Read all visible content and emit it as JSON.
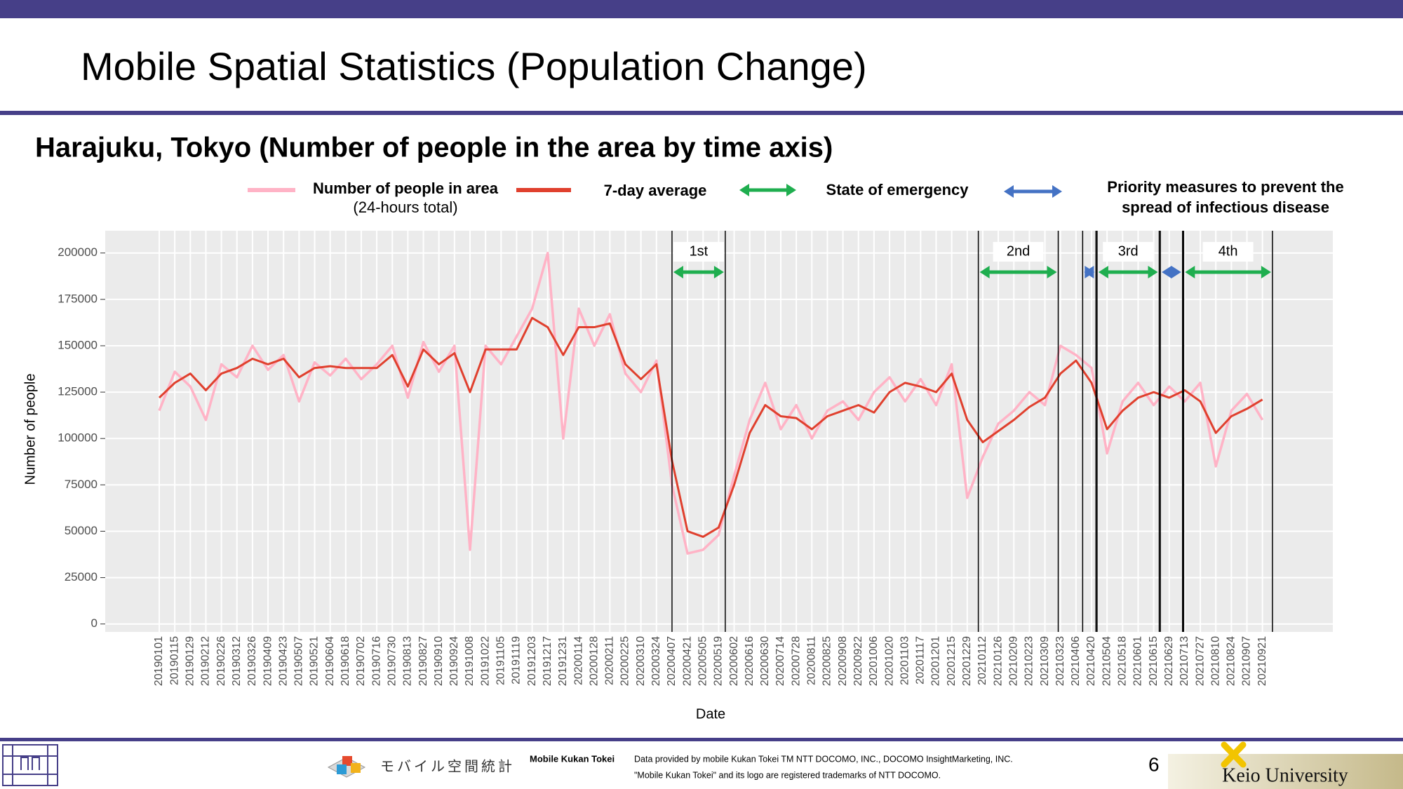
{
  "header": {
    "title": "Mobile Spatial Statistics (Population Change)"
  },
  "chart_data": {
    "type": "line",
    "title": "Harajuku, Tokyo (Number of people in the area by time axis)",
    "x_label": "Date",
    "y_label": "Number of people",
    "categories": [
      "20190101",
      "20190115",
      "20190129",
      "20190212",
      "20190226",
      "20190312",
      "20190326",
      "20190409",
      "20190423",
      "20190507",
      "20190521",
      "20190604",
      "20190618",
      "20190702",
      "20190716",
      "20190730",
      "20190813",
      "20190827",
      "20190910",
      "20190924",
      "20191008",
      "20191022",
      "20191105",
      "20191119",
      "20191203",
      "20191217",
      "20191231",
      "20200114",
      "20200128",
      "20200211",
      "20200225",
      "20200310",
      "20200324",
      "20200407",
      "20200421",
      "20200505",
      "20200519",
      "20200602",
      "20200616",
      "20200630",
      "20200714",
      "20200728",
      "20200811",
      "20200825",
      "20200908",
      "20200922",
      "20201006",
      "20201020",
      "20201103",
      "20201117",
      "20201201",
      "20201215",
      "20201229",
      "20210112",
      "20210126",
      "20210209",
      "20210223",
      "20210309",
      "20210323",
      "20210406",
      "20210420",
      "20210504",
      "20210518",
      "20210601",
      "20210615",
      "20210629",
      "20210713",
      "20210727",
      "20210810",
      "20210824",
      "20210907",
      "20210921"
    ],
    "series": [
      {
        "name": "Number of people in area",
        "name_note": "(24-hours total)",
        "color": "#ffb3c6",
        "values": [
          115000,
          136000,
          128000,
          110000,
          140000,
          133000,
          150000,
          137000,
          145000,
          120000,
          141000,
          134000,
          143000,
          132000,
          140000,
          150000,
          122000,
          152000,
          136000,
          150000,
          40000,
          150000,
          140000,
          155000,
          170000,
          200000,
          100000,
          170000,
          150000,
          167000,
          135000,
          125000,
          142000,
          75000,
          38000,
          40000,
          48000,
          80000,
          110000,
          130000,
          105000,
          118000,
          100000,
          115000,
          120000,
          110000,
          125000,
          133000,
          120000,
          132000,
          118000,
          140000,
          68000,
          90000,
          108000,
          115000,
          125000,
          118000,
          150000,
          145000,
          138000,
          92000,
          120000,
          130000,
          118000,
          128000,
          120000,
          130000,
          85000,
          115000,
          124000,
          110000
        ]
      },
      {
        "name": "7-day average",
        "color": "#e0402e",
        "values": [
          122000,
          130000,
          135000,
          126000,
          135000,
          138000,
          143000,
          140000,
          143000,
          133000,
          138000,
          139000,
          138000,
          138000,
          138000,
          145000,
          128000,
          148000,
          140000,
          146000,
          125000,
          148000,
          148000,
          148000,
          165000,
          160000,
          145000,
          160000,
          160000,
          162000,
          140000,
          132000,
          140000,
          88000,
          50000,
          47000,
          52000,
          75000,
          103000,
          118000,
          112000,
          111000,
          105000,
          112000,
          115000,
          118000,
          114000,
          125000,
          130000,
          128000,
          125000,
          135000,
          110000,
          98000,
          104000,
          110000,
          117000,
          122000,
          135000,
          142000,
          130000,
          105000,
          115000,
          122000,
          125000,
          122000,
          126000,
          120000,
          103000,
          112000,
          116000,
          121000
        ]
      }
    ],
    "ylim": [
      -2000,
      212000
    ],
    "yticks": [
      0,
      25000,
      50000,
      75000,
      100000,
      125000,
      150000,
      175000,
      200000
    ],
    "grid": true,
    "legend_arrows": [
      {
        "name": "State of emergency",
        "color": "#1fae4f"
      },
      {
        "name": [
          "Priority measures to prevent the",
          "spread of infectious disease"
        ],
        "color": "#4472c4"
      }
    ],
    "periods": [
      {
        "label": "1st",
        "start": "20200407",
        "end": "20200525",
        "color": "#1fae4f"
      },
      {
        "label": "2nd",
        "start": "20210108",
        "end": "20210321",
        "color": "#1fae4f"
      },
      {
        "start": "20210412",
        "end": "20210424",
        "color": "#4472c4"
      },
      {
        "label": "3rd",
        "start": "20210425",
        "end": "20210620",
        "color": "#1fae4f"
      },
      {
        "start": "20210621",
        "end": "20210711",
        "color": "#4472c4"
      },
      {
        "label": "4th",
        "start": "20210712",
        "end": "20210930",
        "color": "#1fae4f"
      }
    ]
  },
  "footer": {
    "logo_text": "モバイル空間統計",
    "brand": "Mobile Kukan Tokei",
    "credit": [
      "Data provided by mobile Kukan Tokei TM NTT DOCOMO, INC., DOCOMO InsightMarketing, INC.",
      "\"Mobile Kukan Tokei\" and its logo are registered trademarks of NTT DOCOMO."
    ],
    "page": "6",
    "university": "Keio University"
  }
}
